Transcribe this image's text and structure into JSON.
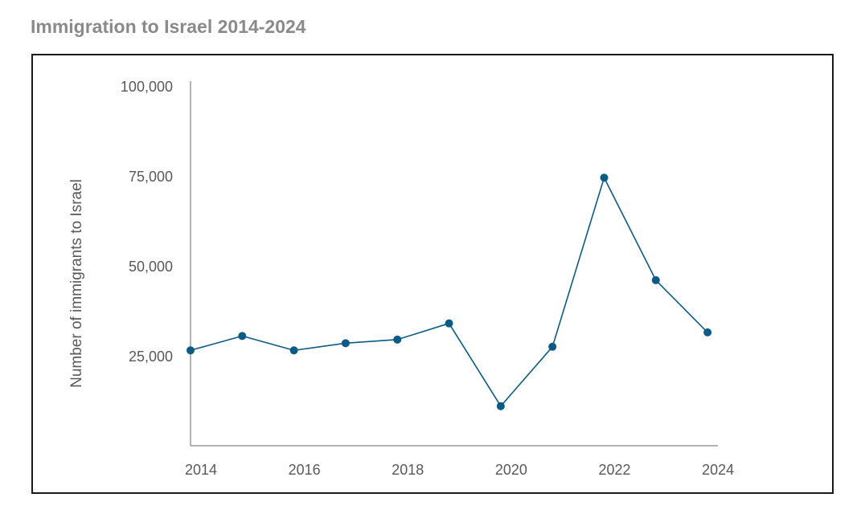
{
  "title": "Immigration to Israel 2014-2024",
  "chart_data": {
    "type": "line",
    "title": "Immigration to Israel 2014-2024",
    "xlabel": "",
    "ylabel": "Number of immigrants to Israel",
    "x": [
      2014,
      2015,
      2016,
      2017,
      2018,
      2019,
      2020,
      2021,
      2022,
      2023,
      2024
    ],
    "x_tick_labels": [
      "2014",
      "2016",
      "2018",
      "2020",
      "2022",
      "2024"
    ],
    "y_tick_labels": [
      "25,000",
      "50,000",
      "75,000",
      "100,000"
    ],
    "y_ticks": [
      25000,
      50000,
      75000,
      100000
    ],
    "ylim": [
      0,
      100000
    ],
    "xlim": [
      2014,
      2024.2
    ],
    "grid": false,
    "legend": "none",
    "series": [
      {
        "values": [
          26500,
          30500,
          26500,
          28500,
          29500,
          34000,
          11000,
          27500,
          74500,
          46000,
          31500
        ],
        "color": "#0b5b86"
      }
    ],
    "colors": {
      "line": "#0b5b86",
      "axis": "#9a9a9a",
      "text": "#595959"
    }
  }
}
